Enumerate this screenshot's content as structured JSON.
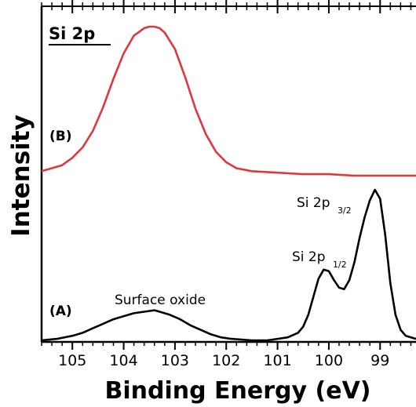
{
  "chart_data": {
    "type": "line",
    "title": "Si 2p",
    "xlabel": "Binding Energy (eV)",
    "ylabel": "Intensity",
    "xlim": [
      105.6,
      98.3
    ],
    "x_reversed": true,
    "xticks": [
      105,
      104,
      103,
      102,
      101,
      100,
      99
    ],
    "yticks_shown": false,
    "series": [
      {
        "name": "(B)",
        "color": "#e0373c",
        "x": [
          105.6,
          105.5,
          105.2,
          105.0,
          104.8,
          104.6,
          104.4,
          104.2,
          104.0,
          103.8,
          103.6,
          103.5,
          103.4,
          103.3,
          103.2,
          103.0,
          102.8,
          102.6,
          102.4,
          102.2,
          102.0,
          101.8,
          101.5,
          101.0,
          100.5,
          100.0,
          99.5,
          99.0,
          98.5,
          98.3
        ],
        "y": [
          0.03,
          0.04,
          0.07,
          0.12,
          0.19,
          0.3,
          0.46,
          0.65,
          0.82,
          0.94,
          0.99,
          1.0,
          1.0,
          0.99,
          0.96,
          0.85,
          0.66,
          0.45,
          0.28,
          0.16,
          0.09,
          0.05,
          0.03,
          0.02,
          0.01,
          0.01,
          0.0,
          0.0,
          0.0,
          0.0
        ]
      },
      {
        "name": "(A)",
        "color": "#000000",
        "x": [
          105.6,
          105.3,
          105.0,
          104.8,
          104.6,
          104.4,
          104.2,
          104.0,
          103.8,
          103.6,
          103.4,
          103.3,
          103.1,
          102.9,
          102.7,
          102.5,
          102.3,
          102.1,
          101.9,
          101.7,
          101.5,
          101.2,
          101.0,
          100.8,
          100.6,
          100.5,
          100.4,
          100.3,
          100.2,
          100.1,
          100.0,
          99.9,
          99.8,
          99.7,
          99.6,
          99.5,
          99.4,
          99.3,
          99.2,
          99.1,
          99.0,
          98.9,
          98.8,
          98.7,
          98.6,
          98.5,
          98.3
        ],
        "y": [
          0.0,
          0.01,
          0.03,
          0.05,
          0.08,
          0.11,
          0.14,
          0.16,
          0.18,
          0.19,
          0.2,
          0.19,
          0.17,
          0.14,
          0.1,
          0.07,
          0.04,
          0.02,
          0.01,
          0.005,
          0.0,
          0.0,
          0.01,
          0.02,
          0.05,
          0.09,
          0.17,
          0.29,
          0.41,
          0.47,
          0.46,
          0.4,
          0.35,
          0.34,
          0.4,
          0.52,
          0.68,
          0.82,
          0.93,
          1.0,
          0.94,
          0.7,
          0.38,
          0.17,
          0.07,
          0.03,
          0.01
        ]
      }
    ],
    "annotations": [
      {
        "text": "(B)",
        "kind": "panel"
      },
      {
        "text": "(A)",
        "kind": "panel"
      },
      {
        "text": "Surface oxide",
        "kind": "peak"
      },
      {
        "text": "Si 2p",
        "sub": "1/2",
        "kind": "peak"
      },
      {
        "text": "Si 2p",
        "sub": "3/2",
        "kind": "peak"
      }
    ],
    "grid": false,
    "legend": "none"
  }
}
